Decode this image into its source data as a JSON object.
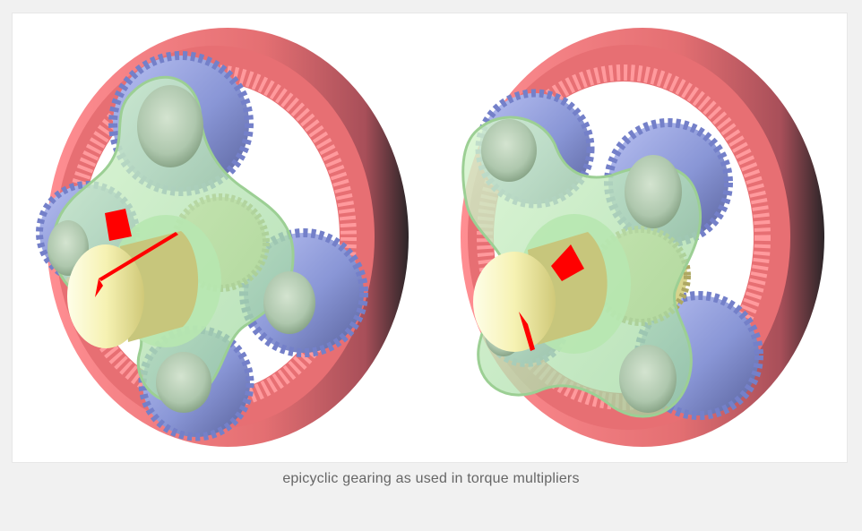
{
  "figure": {
    "caption": "epicyclic gearing as used in torque multipliers",
    "colors": {
      "page_bg": "#f1f1f1",
      "image_bg": "#ffffff",
      "ring_gear": "#e46f72",
      "planet_gears": "#8d98d8",
      "carrier": "#bde9b5",
      "sun_gear": "#d8d68b",
      "shaft": "#f2f0b1",
      "marker": "#ff0000",
      "caption_text": "#666666"
    },
    "icons": [
      "gear-illustration"
    ]
  }
}
